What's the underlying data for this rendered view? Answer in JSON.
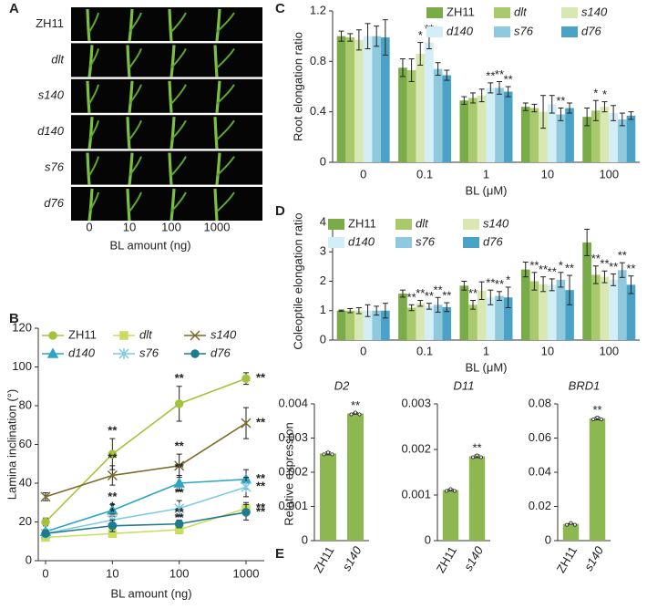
{
  "chart_data": [
    {
      "type": "image-grid",
      "panel": "A",
      "rows": [
        "ZH11",
        "dlt",
        "s140",
        "d140",
        "s76",
        "d76"
      ],
      "row_italic": [
        false,
        true,
        true,
        true,
        true,
        true
      ],
      "columns": [
        "0",
        "10",
        "100",
        "1000"
      ],
      "xlabel": "BL  amount  (ng)"
    },
    {
      "type": "line",
      "panel": "B",
      "ylabel": "Lamina inclination (°)",
      "xlabel": "BL  amount  (ng)",
      "categories": [
        "0",
        "10",
        "100",
        "1000"
      ],
      "ylim": [
        0,
        120
      ],
      "yticks": [
        0,
        20,
        40,
        60,
        80,
        100,
        120
      ],
      "series": [
        {
          "name": "ZH11",
          "color": "#a5c23c",
          "marker": "circle",
          "italic": false,
          "values": [
            20,
            55,
            81,
            94
          ],
          "errors": [
            2,
            8,
            9,
            3
          ],
          "annotations": [
            null,
            "**",
            "**",
            "**"
          ]
        },
        {
          "name": "dlt",
          "color": "#c9de5e",
          "marker": "square",
          "italic": true,
          "values": [
            12,
            14,
            16,
            27
          ],
          "errors": [
            1,
            2,
            2,
            3
          ],
          "annotations": [
            null,
            "*",
            "**",
            "**"
          ]
        },
        {
          "name": "s140",
          "color": "#7b6a2c",
          "marker": "x",
          "italic": true,
          "values": [
            33,
            44,
            49,
            71
          ],
          "errors": [
            2,
            5,
            6,
            8
          ],
          "annotations": [
            null,
            "**",
            "**",
            "**"
          ]
        },
        {
          "name": "d140",
          "color": "#2aa6c2",
          "marker": "triangle",
          "italic": true,
          "values": [
            15,
            26,
            40,
            42
          ],
          "errors": [
            1,
            3,
            4,
            5
          ],
          "annotations": [
            null,
            "**",
            "**",
            "**"
          ]
        },
        {
          "name": "s76",
          "color": "#7fcae0",
          "marker": "star",
          "italic": true,
          "values": [
            14,
            21,
            27,
            38
          ],
          "errors": [
            1,
            3,
            4,
            5
          ],
          "annotations": [
            null,
            "*",
            "**",
            "**"
          ]
        },
        {
          "name": "d76",
          "color": "#1f7a8c",
          "marker": "circle",
          "italic": true,
          "values": [
            14,
            18,
            19,
            25
          ],
          "errors": [
            1,
            3,
            2,
            4
          ],
          "annotations": [
            null,
            "*",
            "**",
            "**"
          ]
        }
      ]
    },
    {
      "type": "bar",
      "panel": "C",
      "ylabel": "Root elongation ratio",
      "xlabel": "BL (μM)",
      "categories": [
        "0",
        "0.1",
        "1",
        "10",
        "100"
      ],
      "ylim": [
        0,
        1.2
      ],
      "yticks": [
        0,
        0.4,
        0.8,
        1.2
      ],
      "series": [
        {
          "name": "ZH11",
          "color": "#7aab49",
          "italic": false,
          "values": [
            1.0,
            0.75,
            0.49,
            0.44,
            0.36
          ],
          "errors": [
            0.04,
            0.07,
            0.03,
            0.03,
            0.07
          ],
          "annotations": [
            null,
            null,
            null,
            null,
            null
          ]
        },
        {
          "name": "dlt",
          "color": "#a9c96c",
          "italic": true,
          "values": [
            0.99,
            0.73,
            0.51,
            0.43,
            0.41
          ],
          "errors": [
            0.03,
            0.09,
            0.04,
            0.03,
            0.08
          ],
          "annotations": [
            null,
            null,
            null,
            null,
            "*"
          ]
        },
        {
          "name": "s140",
          "color": "#d9e7b2",
          "italic": true,
          "values": [
            0.97,
            0.86,
            0.53,
            0.4,
            0.44
          ],
          "errors": [
            0.08,
            0.09,
            0.05,
            0.13,
            0.04
          ],
          "annotations": [
            null,
            "*",
            null,
            null,
            "*"
          ]
        },
        {
          "name": "d140",
          "color": "#d3eef6",
          "italic": true,
          "values": [
            1.0,
            0.95,
            0.59,
            0.46,
            0.39
          ],
          "errors": [
            0.1,
            0.05,
            0.04,
            0.07,
            0.06
          ],
          "annotations": [
            null,
            "**",
            "**",
            null,
            null
          ]
        },
        {
          "name": "s76",
          "color": "#8ec9de",
          "italic": true,
          "values": [
            1.0,
            0.74,
            0.59,
            0.38,
            0.34
          ],
          "errors": [
            0.08,
            0.05,
            0.05,
            0.05,
            0.05
          ],
          "annotations": [
            null,
            null,
            "**",
            "**",
            null
          ]
        },
        {
          "name": "d76",
          "color": "#4aa3c6",
          "italic": true,
          "values": [
            0.99,
            0.69,
            0.56,
            0.43,
            0.37
          ],
          "errors": [
            0.14,
            0.04,
            0.04,
            0.04,
            0.03
          ],
          "annotations": [
            null,
            null,
            "**",
            null,
            null
          ]
        }
      ]
    },
    {
      "type": "bar",
      "panel": "D",
      "ylabel": "Coleoptile elongation ratio",
      "xlabel": "BL (μM)",
      "categories": [
        "0",
        "0.1",
        "1",
        "10",
        "100"
      ],
      "ylim": [
        0,
        4
      ],
      "yticks": [
        0,
        1,
        2,
        3,
        4
      ],
      "series": [
        {
          "name": "ZH11",
          "color": "#7aab49",
          "italic": false,
          "values": [
            1.0,
            1.58,
            1.85,
            2.4,
            3.32
          ],
          "errors": [
            0.02,
            0.12,
            0.15,
            0.25,
            0.45
          ],
          "annotations": [
            null,
            null,
            null,
            null,
            null
          ]
        },
        {
          "name": "dlt",
          "color": "#a9c96c",
          "italic": true,
          "values": [
            1.0,
            1.1,
            1.2,
            2.0,
            2.22
          ],
          "errors": [
            0.07,
            0.1,
            0.15,
            0.3,
            0.3
          ],
          "annotations": [
            null,
            "**",
            "**",
            "**",
            "**"
          ]
        },
        {
          "name": "s140",
          "color": "#d9e7b2",
          "italic": true,
          "values": [
            1.0,
            1.25,
            1.68,
            1.9,
            2.15
          ],
          "errors": [
            0.1,
            0.1,
            0.3,
            0.25,
            0.2
          ],
          "annotations": [
            null,
            "**",
            null,
            "**",
            "**"
          ]
        },
        {
          "name": "d140",
          "color": "#d3eef6",
          "italic": true,
          "values": [
            1.0,
            1.15,
            1.45,
            1.88,
            2.05
          ],
          "errors": [
            0.2,
            0.1,
            0.25,
            0.2,
            0.2
          ],
          "annotations": [
            null,
            "**",
            "**",
            "**",
            "**"
          ]
        },
        {
          "name": "s76",
          "color": "#8ec9de",
          "italic": true,
          "values": [
            1.0,
            1.2,
            1.5,
            2.05,
            2.38
          ],
          "errors": [
            0.15,
            0.25,
            0.15,
            0.25,
            0.25
          ],
          "annotations": [
            null,
            "**",
            "**",
            "*",
            "**"
          ]
        },
        {
          "name": "d76",
          "color": "#4aa3c6",
          "italic": true,
          "values": [
            1.0,
            1.12,
            1.45,
            1.7,
            1.88
          ],
          "errors": [
            0.25,
            0.15,
            0.35,
            0.5,
            0.3
          ],
          "annotations": [
            null,
            "**",
            "*",
            "**",
            "**"
          ]
        }
      ]
    },
    {
      "type": "bar",
      "panel": "E",
      "title": "D2",
      "ylabel": "Relative expression",
      "categories": [
        "ZH11",
        "s140"
      ],
      "category_italic": [
        false,
        true
      ],
      "ylim": [
        0,
        0.004
      ],
      "yticks": [
        0,
        0.001,
        0.002,
        0.003,
        0.004
      ],
      "series": [
        {
          "color": "#8db751",
          "values": [
            0.00255,
            0.00372
          ],
          "errors": [
            4e-05,
            2e-05
          ],
          "annotations": [
            null,
            "**"
          ]
        }
      ]
    },
    {
      "type": "bar",
      "title": "D11",
      "categories": [
        "ZH11",
        "s140"
      ],
      "category_italic": [
        false,
        true
      ],
      "ylim": [
        0,
        0.003
      ],
      "yticks": [
        0,
        0.001,
        0.002,
        0.003
      ],
      "series": [
        {
          "color": "#8db751",
          "values": [
            0.00111,
            0.00185
          ],
          "errors": [
            2e-05,
            3e-05
          ],
          "annotations": [
            null,
            "**"
          ]
        }
      ]
    },
    {
      "type": "bar",
      "title": "BRD1",
      "categories": [
        "ZH11",
        "s140"
      ],
      "category_italic": [
        false,
        true
      ],
      "ylim": [
        0,
        0.08
      ],
      "yticks": [
        0,
        0.02,
        0.04,
        0.06,
        0.08
      ],
      "series": [
        {
          "color": "#8db751",
          "values": [
            0.0098,
            0.0715
          ],
          "errors": [
            0.0002,
            0.0008
          ],
          "annotations": [
            null,
            "**"
          ]
        }
      ]
    }
  ]
}
